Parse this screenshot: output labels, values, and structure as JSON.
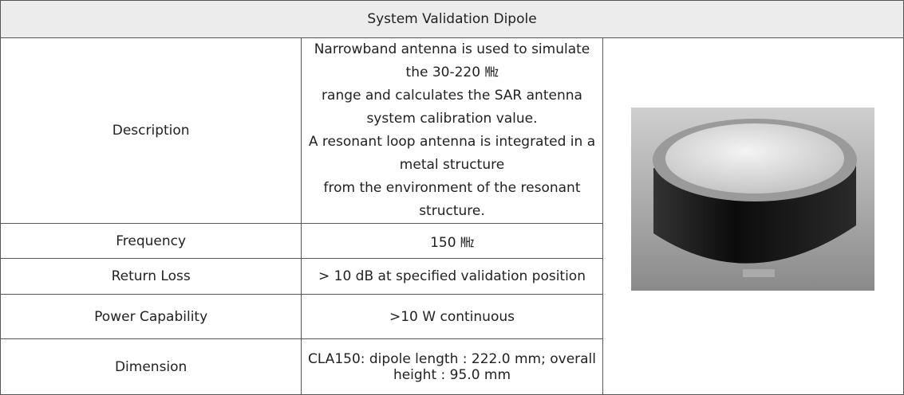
{
  "table": {
    "title": "System Validation Dipole",
    "rows": [
      {
        "label": "Description",
        "lines": [
          "Narrowband antenna is used to simulate the 30-220 ㎒",
          "range and calculates the SAR antenna system calibration value.",
          "A resonant loop antenna is integrated in a metal structure",
          "from the environment of the resonant structure."
        ]
      },
      {
        "label": "Frequency",
        "lines": [
          "150 ㎒"
        ]
      },
      {
        "label": "Return Loss",
        "lines": [
          "> 10 dB at specified validation position"
        ]
      },
      {
        "label": "Power Capability",
        "lines": [
          ">10 W continuous"
        ]
      },
      {
        "label": "Dimension",
        "lines": [
          "CLA150: dipole length : 222.0 mm; overall height : 95.0 mm"
        ]
      }
    ]
  }
}
